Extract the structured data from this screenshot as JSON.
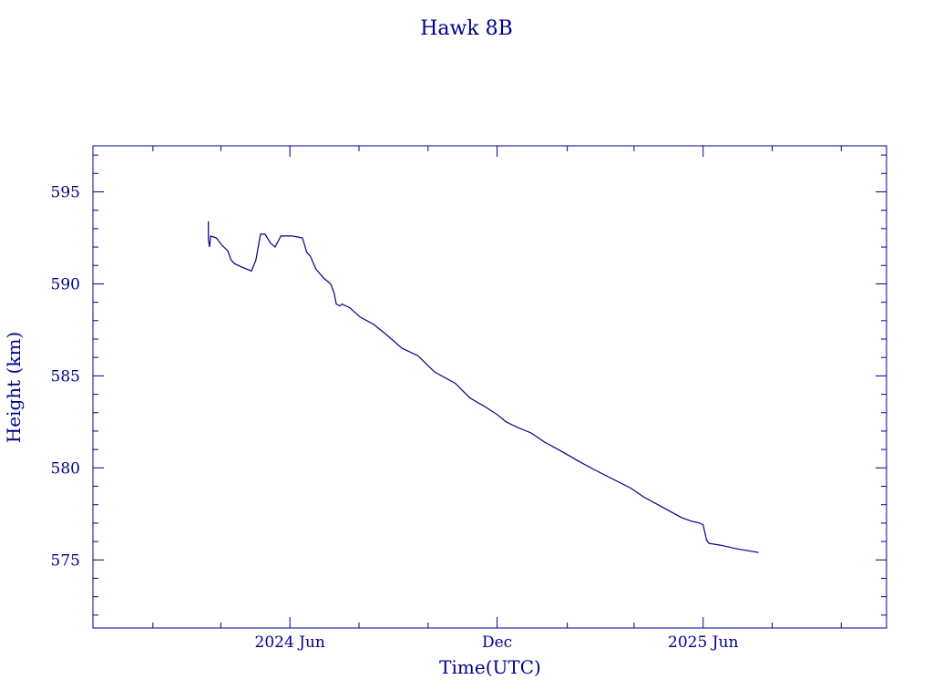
{
  "chart_data": {
    "type": "line",
    "title": "Hawk 8B",
    "xlabel": "Time(UTC)",
    "ylabel": "Height (km)",
    "x_tick_labels": [
      {
        "date": "2024-06-01",
        "label": "2024 Jun"
      },
      {
        "date": "2024-12-01",
        "label": "Dec"
      },
      {
        "date": "2025-06-01",
        "label": "2025 Jun"
      }
    ],
    "xlim": [
      "2023-12-10",
      "2025-11-10"
    ],
    "ylim": [
      571.3,
      597.5
    ],
    "y_ticks": [
      575,
      580,
      585,
      590,
      595
    ],
    "grid": false,
    "legend": "none",
    "colors": {
      "line": "#00008b",
      "axes": "#00008b",
      "text": "#00008b"
    },
    "series": [
      {
        "points": [
          [
            "2024-03-21",
            593.4
          ],
          [
            "2024-03-21",
            592.4
          ],
          [
            "2024-03-22",
            592.0
          ],
          [
            "2024-03-23",
            592.6
          ],
          [
            "2024-03-28",
            592.5
          ],
          [
            "2024-04-02",
            592.1
          ],
          [
            "2024-04-07",
            591.8
          ],
          [
            "2024-04-10",
            591.3
          ],
          [
            "2024-04-13",
            591.1
          ],
          [
            "2024-04-20",
            590.9
          ],
          [
            "2024-04-28",
            590.7
          ],
          [
            "2024-05-02",
            591.3
          ],
          [
            "2024-05-06",
            592.7
          ],
          [
            "2024-05-10",
            592.7
          ],
          [
            "2024-05-15",
            592.2
          ],
          [
            "2024-05-19",
            592.0
          ],
          [
            "2024-05-24",
            592.6
          ],
          [
            "2024-06-03",
            592.6
          ],
          [
            "2024-06-12",
            592.5
          ],
          [
            "2024-06-16",
            591.7
          ],
          [
            "2024-06-19",
            591.5
          ],
          [
            "2024-06-24",
            590.8
          ],
          [
            "2024-07-01",
            590.3
          ],
          [
            "2024-07-07",
            590.0
          ],
          [
            "2024-07-10",
            589.5
          ],
          [
            "2024-07-12",
            588.9
          ],
          [
            "2024-07-15",
            588.8
          ],
          [
            "2024-07-17",
            588.9
          ],
          [
            "2024-07-24",
            588.7
          ],
          [
            "2024-08-02",
            588.2
          ],
          [
            "2024-08-14",
            587.8
          ],
          [
            "2024-08-26",
            587.2
          ],
          [
            "2024-09-08",
            586.5
          ],
          [
            "2024-09-22",
            586.1
          ],
          [
            "2024-10-02",
            585.5
          ],
          [
            "2024-10-07",
            585.2
          ],
          [
            "2024-10-16",
            584.9
          ],
          [
            "2024-10-25",
            584.6
          ],
          [
            "2024-11-07",
            583.8
          ],
          [
            "2024-11-21",
            583.3
          ],
          [
            "2024-12-01",
            582.9
          ],
          [
            "2024-12-09",
            582.5
          ],
          [
            "2024-12-19",
            582.2
          ],
          [
            "2024-12-31",
            581.9
          ],
          [
            "2025-01-12",
            581.4
          ],
          [
            "2025-01-27",
            580.9
          ],
          [
            "2025-02-10",
            580.4
          ],
          [
            "2025-02-25",
            579.9
          ],
          [
            "2025-03-13",
            579.4
          ],
          [
            "2025-03-29",
            578.9
          ],
          [
            "2025-04-10",
            578.4
          ],
          [
            "2025-04-22",
            578.0
          ],
          [
            "2025-05-04",
            577.6
          ],
          [
            "2025-05-13",
            577.3
          ],
          [
            "2025-05-22",
            577.1
          ],
          [
            "2025-05-29",
            577.0
          ],
          [
            "2025-06-01",
            576.9
          ],
          [
            "2025-06-04",
            576.1
          ],
          [
            "2025-06-06",
            575.9
          ],
          [
            "2025-06-16",
            575.8
          ],
          [
            "2025-07-01",
            575.6
          ],
          [
            "2025-07-20",
            575.4
          ]
        ]
      }
    ]
  }
}
